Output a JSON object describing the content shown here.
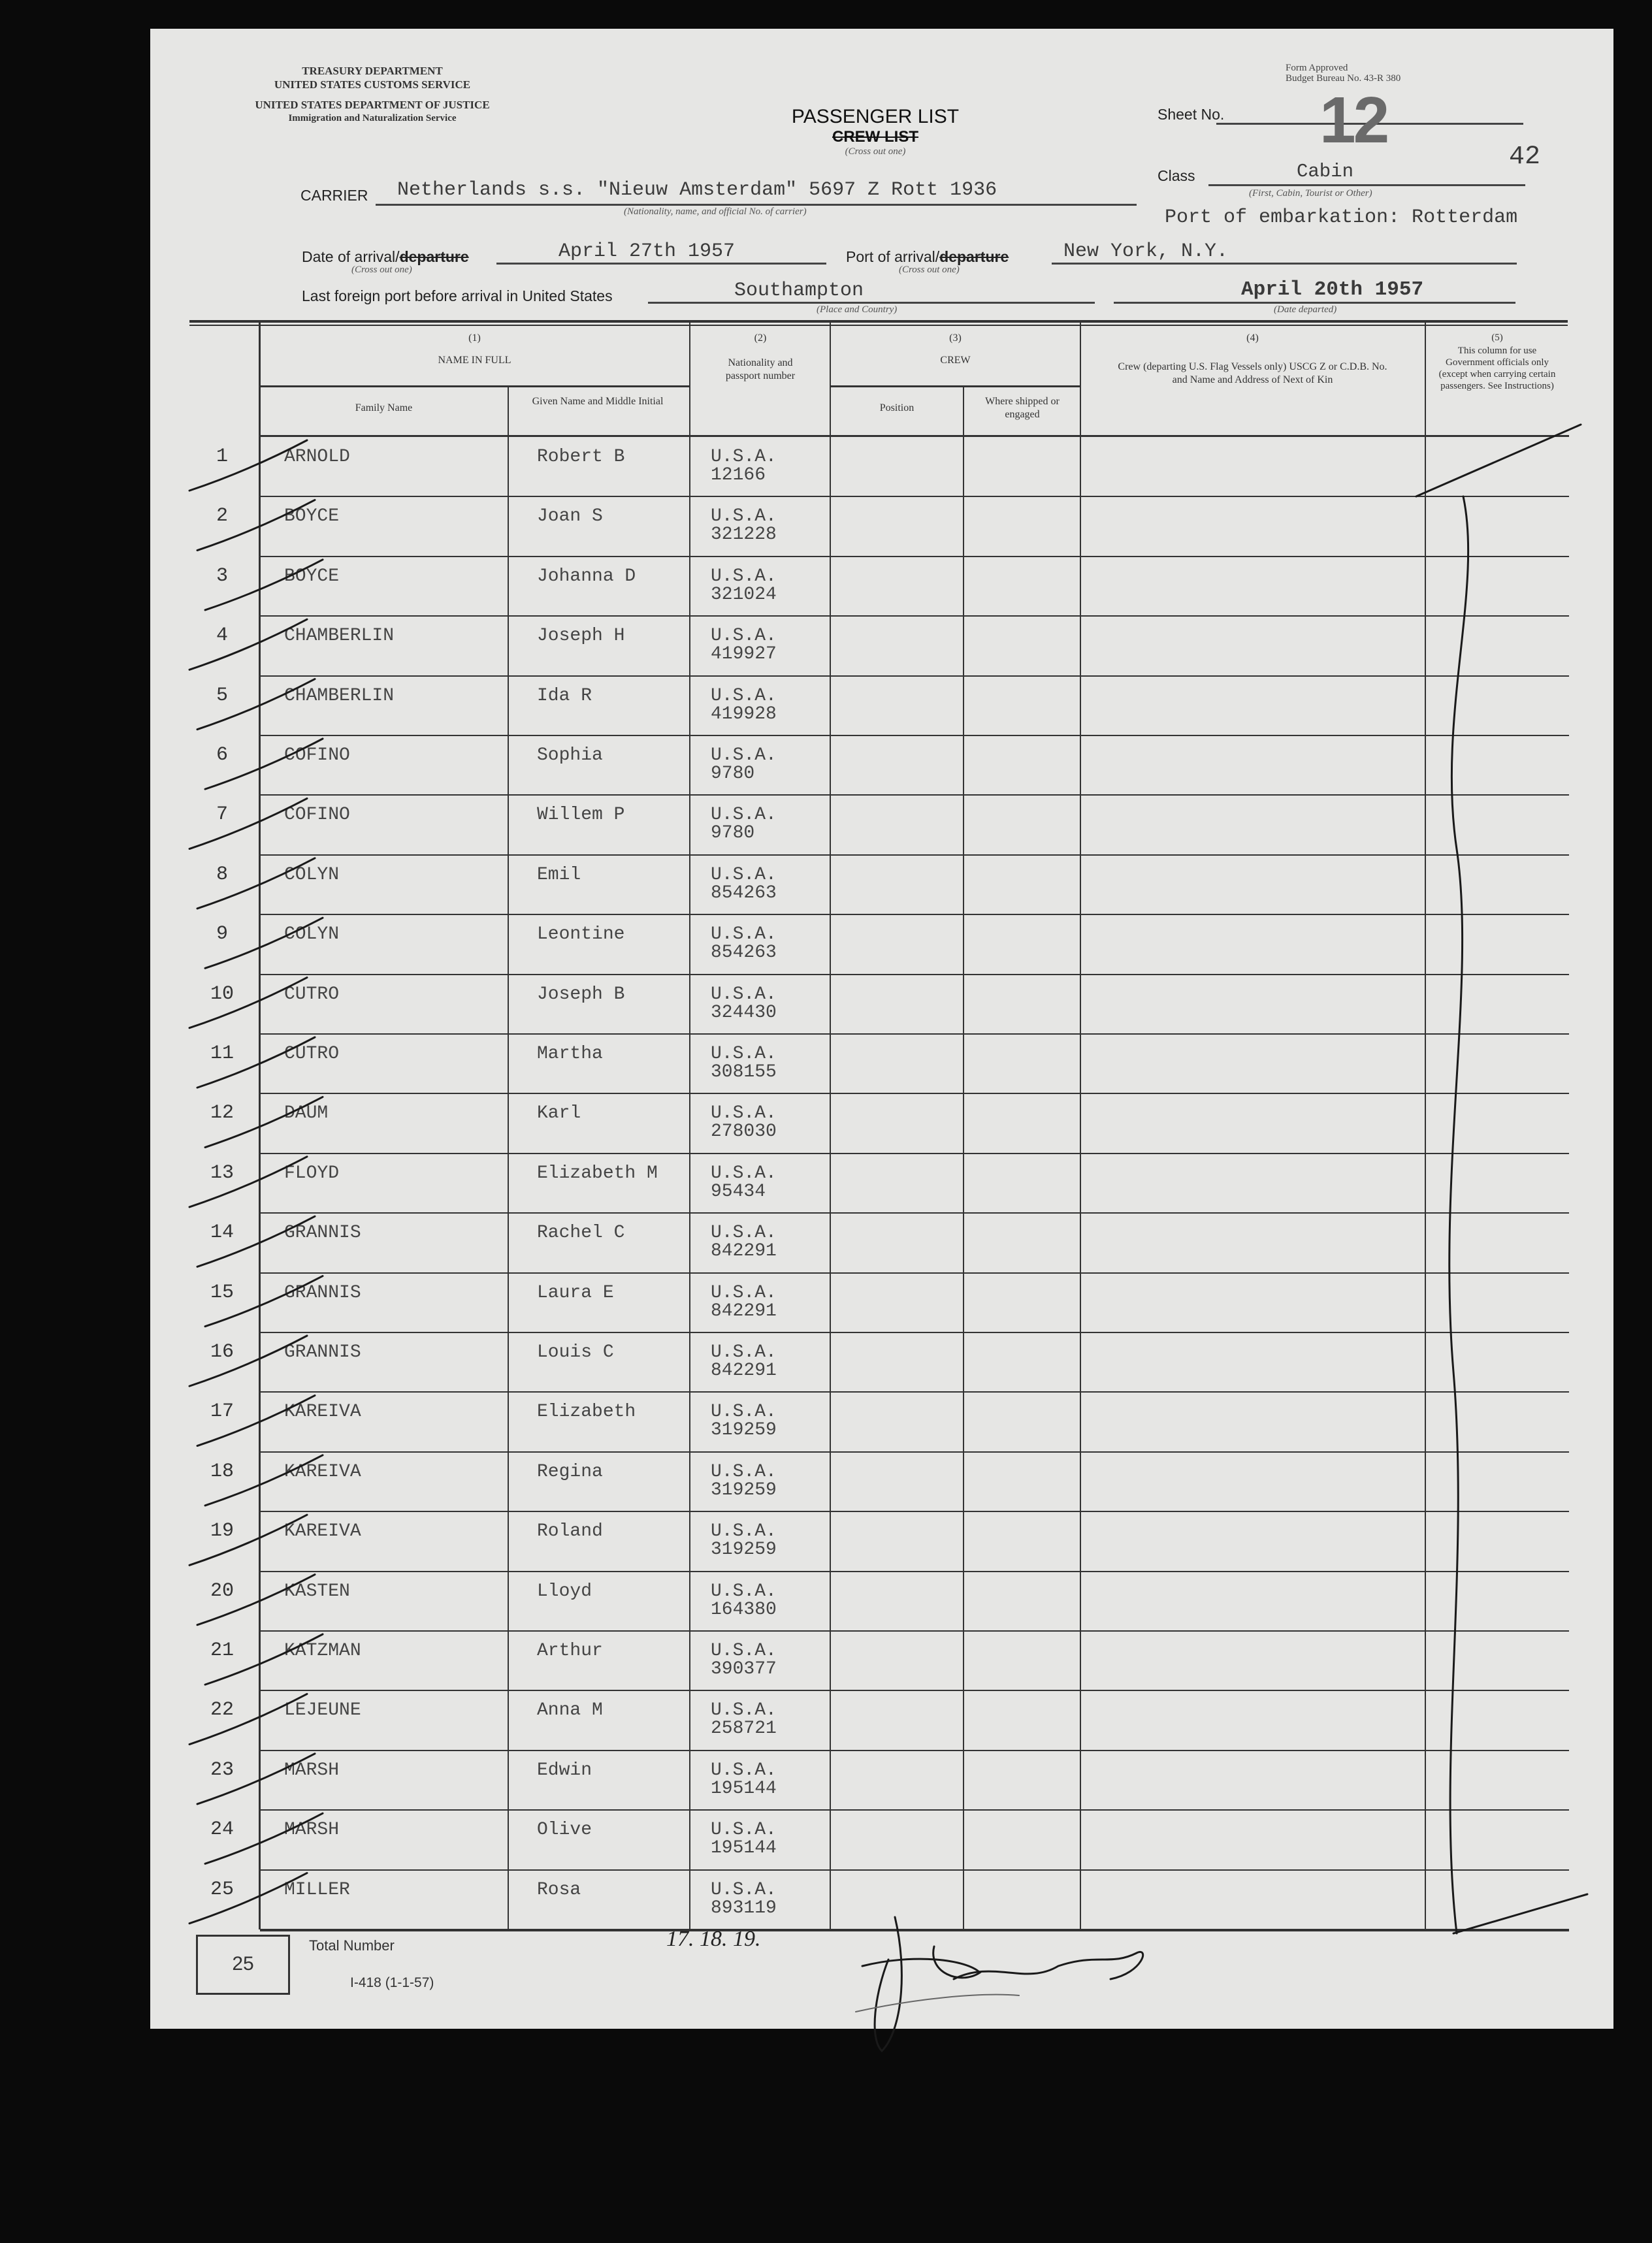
{
  "agency": {
    "treasury": "TREASURY DEPARTMENT",
    "customs": "UNITED STATES CUSTOMS SERVICE",
    "justice": "UNITED STATES DEPARTMENT OF JUSTICE",
    "ins": "Immigration and Naturalization Service"
  },
  "form_approved": "Form Approved",
  "budget_bureau": "Budget Bureau No. 43-R 380",
  "title": "PASSENGER LIST",
  "title_crossed": "CREW LIST",
  "title_note": "(Cross out one)",
  "sheet_label": "Sheet No.",
  "sheet_no": "12",
  "sheet_annotation": "42",
  "class_label": "Class",
  "class_value": "Cabin",
  "class_note": "(First, Cabin, Tourist or Other)",
  "carrier_label": "CARRIER",
  "carrier_value": "Netherlands s.s. \"Nieuw Amsterdam\" 5697 Z Rott 1936",
  "carrier_note": "(Nationality, name, and official No. of carrier)",
  "port_embarkation": "Port of embarkation: Rotterdam",
  "date_label": "Date of arrival/",
  "date_label_crossed": "departure",
  "date_value": "April 27th 1957",
  "date_note": "(Cross out one)",
  "port_label": "Port of arrival/",
  "port_label_crossed": "departure",
  "port_value": "New York, N.Y.",
  "port_note": "(Cross out one)",
  "last_port_label": "Last foreign port before arrival in United States",
  "last_port_value": "Southampton",
  "last_port_note": "(Place and Country)",
  "departed_value": "April 20th 1957",
  "departed_note": "(Date departed)",
  "columns": {
    "c1_num": "(1)",
    "c1_title": "NAME IN FULL",
    "c1_family": "Family Name",
    "c1_given": "Given Name and Middle Initial",
    "c2_num": "(2)",
    "c2_title": "Nationality and passport number",
    "c3_num": "(3)",
    "c3_title": "CREW",
    "c3_position": "Position",
    "c3_where": "Where shipped or engaged",
    "c4_num": "(4)",
    "c4_title": "Crew (departing U.S. Flag Vessels only) USCG Z or C.D.B. No. and Name and Address of Next of Kin",
    "c5_num": "(5)",
    "c5_title": "This column for use Government officials only (except when carrying certain passengers. See Instructions)"
  },
  "rows": [
    {
      "num": "1",
      "family": "ARNOLD",
      "given": "Robert B",
      "nationality": "U.S.A.",
      "passport": "12166"
    },
    {
      "num": "2",
      "family": "BOYCE",
      "given": "Joan S",
      "nationality": "U.S.A.",
      "passport": "321228"
    },
    {
      "num": "3",
      "family": "BOYCE",
      "given": "Johanna D",
      "nationality": "U.S.A.",
      "passport": "321024"
    },
    {
      "num": "4",
      "family": "CHAMBERLIN",
      "given": "Joseph H",
      "nationality": "U.S.A.",
      "passport": "419927"
    },
    {
      "num": "5",
      "family": "CHAMBERLIN",
      "given": "Ida R",
      "nationality": "U.S.A.",
      "passport": "419928"
    },
    {
      "num": "6",
      "family": "COFINO",
      "given": "Sophia",
      "nationality": "U.S.A.",
      "passport": "9780"
    },
    {
      "num": "7",
      "family": "COFINO",
      "given": "Willem P",
      "nationality": "U.S.A.",
      "passport": "9780"
    },
    {
      "num": "8",
      "family": "COLYN",
      "given": "Emil",
      "nationality": "U.S.A.",
      "passport": "854263"
    },
    {
      "num": "9",
      "family": "COLYN",
      "given": "Leontine",
      "nationality": "U.S.A.",
      "passport": "854263"
    },
    {
      "num": "10",
      "family": "CUTRO",
      "given": "Joseph B",
      "nationality": "U.S.A.",
      "passport": "324430"
    },
    {
      "num": "11",
      "family": "CUTRO",
      "given": "Martha",
      "nationality": "U.S.A.",
      "passport": "308155"
    },
    {
      "num": "12",
      "family": "DAUM",
      "given": "Karl",
      "nationality": "U.S.A.",
      "passport": "278030"
    },
    {
      "num": "13",
      "family": "FLOYD",
      "given": "Elizabeth M",
      "nationality": "U.S.A.",
      "passport": "95434"
    },
    {
      "num": "14",
      "family": "GRANNIS",
      "given": "Rachel C",
      "nationality": "U.S.A.",
      "passport": "842291"
    },
    {
      "num": "15",
      "family": "GRANNIS",
      "given": "Laura E",
      "nationality": "U.S.A.",
      "passport": "842291"
    },
    {
      "num": "16",
      "family": "GRANNIS",
      "given": "Louis C",
      "nationality": "U.S.A.",
      "passport": "842291"
    },
    {
      "num": "17",
      "family": "KAREIVA",
      "given": "Elizabeth",
      "nationality": "U.S.A.",
      "passport": "319259"
    },
    {
      "num": "18",
      "family": "KAREIVA",
      "given": "Regina",
      "nationality": "U.S.A.",
      "passport": "319259"
    },
    {
      "num": "19",
      "family": "KAREIVA",
      "given": "Roland",
      "nationality": "U.S.A.",
      "passport": "319259"
    },
    {
      "num": "20",
      "family": "KASTEN",
      "given": "Lloyd",
      "nationality": "U.S.A.",
      "passport": "164380"
    },
    {
      "num": "21",
      "family": "KATZMAN",
      "given": "Arthur",
      "nationality": "U.S.A.",
      "passport": "390377"
    },
    {
      "num": "22",
      "family": "LEJEUNE",
      "given": "Anna M",
      "nationality": "U.S.A.",
      "passport": "258721"
    },
    {
      "num": "23",
      "family": "MARSH",
      "given": "Edwin",
      "nationality": "U.S.A.",
      "passport": "195144"
    },
    {
      "num": "24",
      "family": "MARSH",
      "given": "Olive",
      "nationality": "U.S.A.",
      "passport": "195144"
    },
    {
      "num": "25",
      "family": "MILLER",
      "given": "Rosa",
      "nationality": "U.S.A.",
      "passport": "893119"
    }
  ],
  "total_label": "Total Number",
  "total_value": "25",
  "form_number": "I-418 (1-1-57)",
  "annotation_handwritten": "17. 18. 19."
}
